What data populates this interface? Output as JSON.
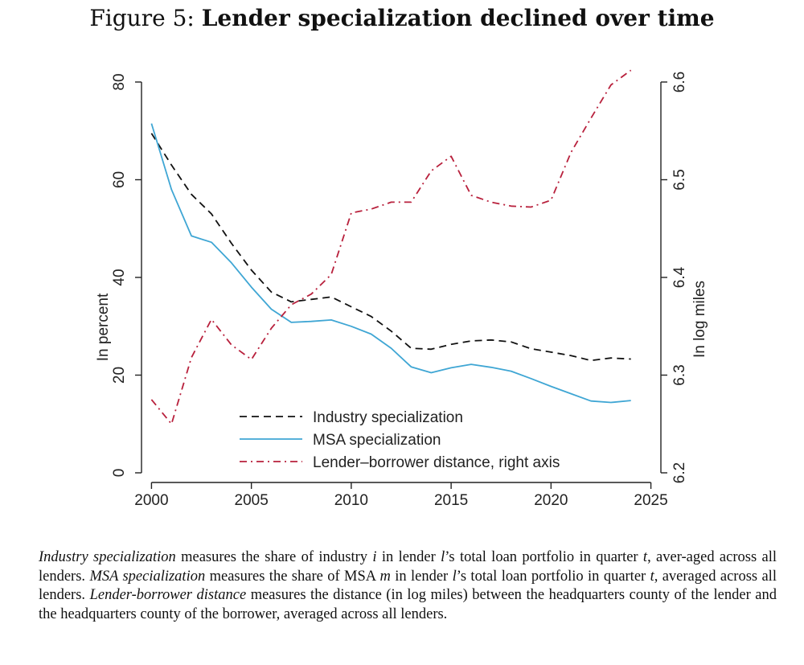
{
  "figure": {
    "label": "Figure 5:",
    "title": "Lender specialization declined over time"
  },
  "chart_data": {
    "type": "line",
    "x": [
      2000,
      2001,
      2002,
      2003,
      2004,
      2005,
      2006,
      2007,
      2008,
      2009,
      2010,
      2011,
      2012,
      2013,
      2014,
      2015,
      2016,
      2017,
      2018,
      2019,
      2020,
      2021,
      2022,
      2023,
      2024
    ],
    "xlim": [
      1999.5,
      2025.5
    ],
    "xticks": [
      2000,
      2005,
      2010,
      2015,
      2020,
      2025
    ],
    "ylabel": "In percent",
    "ylim": [
      0,
      80
    ],
    "yticks": [
      0,
      20,
      40,
      60,
      80
    ],
    "y2label": "In log miles",
    "y2lim": [
      6.2,
      6.6
    ],
    "y2ticks": [
      6.2,
      6.3,
      6.4,
      6.5,
      6.6
    ],
    "legend_position": "bottom-center",
    "series": [
      {
        "name": "Industry specialization",
        "axis": "left",
        "style": "dashed",
        "color": "#111111",
        "values": [
          69.5,
          63,
          57,
          53,
          47,
          41.5,
          37,
          35,
          35.5,
          36,
          34,
          32,
          29,
          25.5,
          25.3,
          26.3,
          27,
          27.2,
          26.8,
          25.4,
          24.7,
          24,
          23,
          23.5,
          23.3
        ]
      },
      {
        "name": "MSA specialization",
        "axis": "left",
        "style": "solid",
        "color": "#3fa6d4",
        "values": [
          71.5,
          58,
          48.5,
          47.2,
          43,
          38,
          33.5,
          30.8,
          31,
          31.3,
          30,
          28.4,
          25.5,
          21.7,
          20.5,
          21.5,
          22.2,
          21.6,
          20.8,
          19.3,
          17.7,
          16.2,
          14.7,
          14.4,
          14.8
        ]
      },
      {
        "name": "Lender–borrower distance, right axis",
        "axis": "right",
        "style": "dashdot",
        "color": "#b8203c",
        "values": [
          6.275,
          6.25,
          6.318,
          6.357,
          6.331,
          6.316,
          6.348,
          6.372,
          6.383,
          6.403,
          6.466,
          6.47,
          6.477,
          6.477,
          6.509,
          6.524,
          6.484,
          6.477,
          6.473,
          6.472,
          6.479,
          6.528,
          6.563,
          6.597,
          6.612
        ]
      }
    ]
  },
  "caption": {
    "t1": "Industry specialization",
    "t2": " measures the share of industry ",
    "t3": "i",
    "t4": " in lender ",
    "t5": "l",
    "t6": "’s total loan portfolio in quarter ",
    "t7": "t",
    "t8": ", aver-aged across all lenders. ",
    "t9": "MSA specialization",
    "t10": " measures the share of MSA ",
    "t11": "m",
    "t12": " in lender ",
    "t13": "l",
    "t14": "’s total loan portfolio in quarter ",
    "t15": "t",
    "t16": ", averaged across all lenders. ",
    "t17": "Lender-borrower distance",
    "t18": " measures the distance (in log miles) between the headquarters county of the lender and the headquarters county of the borrower, averaged across all lenders."
  }
}
